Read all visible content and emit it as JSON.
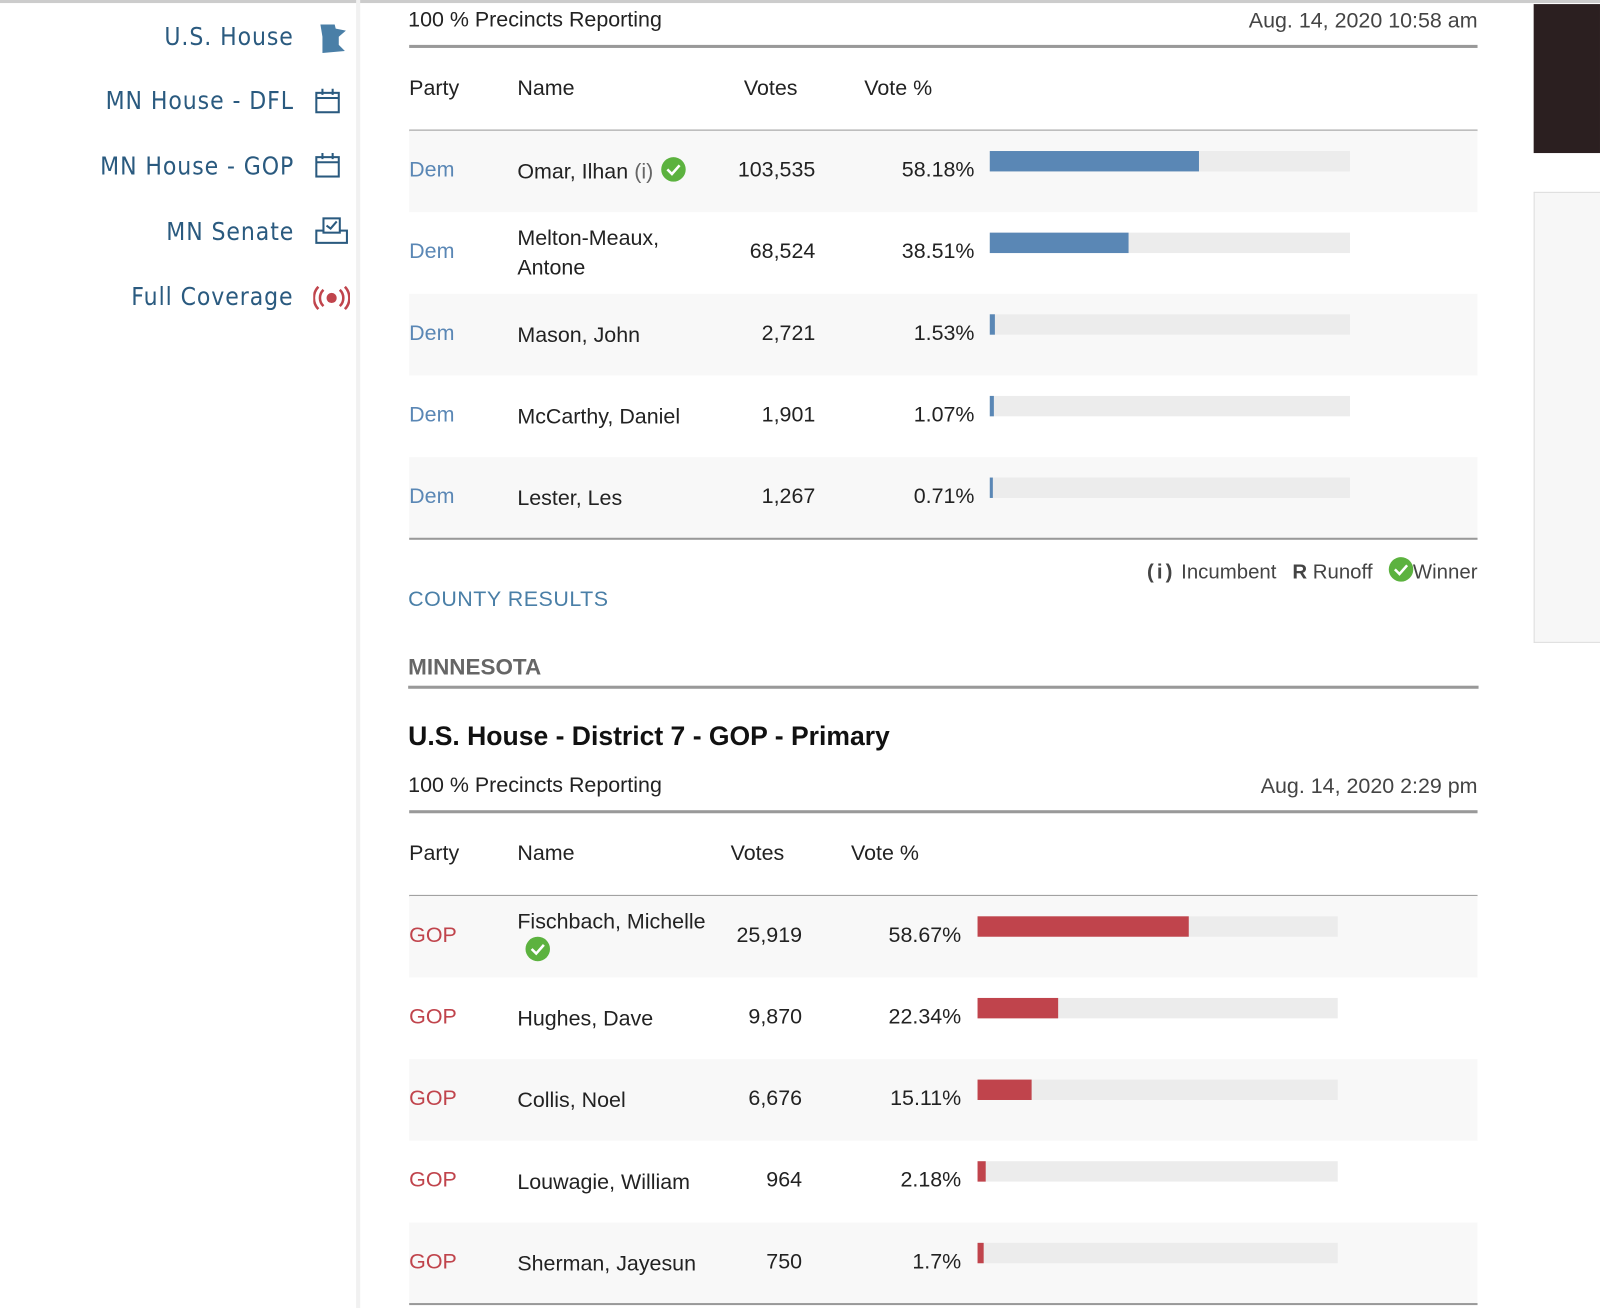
{
  "sidebar": {
    "nav": [
      "U.S. House",
      "MN House - DFL",
      "MN House - GOP",
      "MN Senate",
      "Full Coverage"
    ]
  },
  "races": [
    {
      "precincts": "100 % Precincts Reporting",
      "updated": "Aug. 14, 2020 10:58 am",
      "columns": [
        "Party",
        "Name",
        "Votes",
        "Vote %"
      ],
      "color": "#5a87b5",
      "rows": [
        {
          "party": "Dem",
          "name": "Omar, Ilhan",
          "incumbent": "(i)",
          "winner": true,
          "votes": "103,535",
          "pct": 58.18,
          "pct_label": "58.18%"
        },
        {
          "party": "Dem",
          "name": "Melton-Meaux, Antone",
          "votes": "68,524",
          "pct": 38.51,
          "pct_label": "38.51%"
        },
        {
          "party": "Dem",
          "name": "Mason, John",
          "votes": "2,721",
          "pct": 1.53,
          "pct_label": "1.53%"
        },
        {
          "party": "Dem",
          "name": "McCarthy, Daniel",
          "votes": "1,901",
          "pct": 1.07,
          "pct_label": "1.07%"
        },
        {
          "party": "Dem",
          "name": "Lester, Les",
          "votes": "1,267",
          "pct": 0.71,
          "pct_label": "0.71%"
        }
      ]
    },
    {
      "title": "U.S. House - District 7 - GOP - Primary",
      "precincts": "100 % Precincts Reporting",
      "updated": "Aug. 14, 2020 2:29 pm",
      "columns": [
        "Party",
        "Name",
        "Votes",
        "Vote %"
      ],
      "color": "#c0444c",
      "rows": [
        {
          "party": "GOP",
          "name": "Fischbach, Michelle",
          "winner": true,
          "votes": "25,919",
          "pct": 58.67,
          "pct_label": "58.67%"
        },
        {
          "party": "GOP",
          "name": "Hughes, Dave",
          "votes": "9,870",
          "pct": 22.34,
          "pct_label": "22.34%"
        },
        {
          "party": "GOP",
          "name": "Collis, Noel",
          "votes": "6,676",
          "pct": 15.11,
          "pct_label": "15.11%"
        },
        {
          "party": "GOP",
          "name": "Louwagie, William",
          "votes": "964",
          "pct": 2.18,
          "pct_label": "2.18%"
        },
        {
          "party": "GOP",
          "name": "Sherman, Jayesun",
          "votes": "750",
          "pct": 1.7,
          "pct_label": "1.7%"
        }
      ]
    }
  ],
  "legend": {
    "incumbent_symbol": "(i)",
    "incumbent": "Incumbent",
    "runoff_symbol": "R",
    "runoff": "Runoff",
    "winner": "Winner"
  },
  "county_results": "COUNTY RESULTS",
  "section": "MINNESOTA"
}
